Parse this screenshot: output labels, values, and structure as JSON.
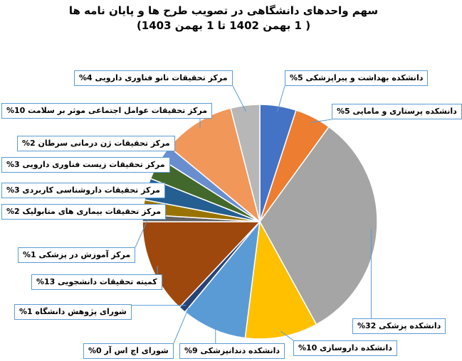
{
  "title": {
    "line1": "سهم واحدهای دانشگاهی در تصویب طرح ها و پایان نامه ها",
    "line2": "( 1 بهمن 1402 تا 1 بهمن  1403)"
  },
  "chart_data": {
    "type": "pie",
    "unit": "%",
    "slices": [
      {
        "name": "دانشکده بهداشت و پیراپزشکی",
        "value": 5,
        "label": "دانشکده بهداشت و پیراپزشکی 5%",
        "color": "#4472c4"
      },
      {
        "name": "دانشکده پرستاری و مامایی",
        "value": 5,
        "label": "دانشکده پرستاری و مامایی 5%",
        "color": "#ed7d31"
      },
      {
        "name": "دانشکده پزشکی",
        "value": 32,
        "label": "دانشکده پزشکی 32%",
        "color": "#a5a5a5"
      },
      {
        "name": "دانشکده داروسازی",
        "value": 10,
        "label": "دانشکده داروسازی 10%",
        "color": "#ffc000"
      },
      {
        "name": "دانشکده دندانپزشکی",
        "value": 9,
        "label": "دانشکده دندانپزشکی 9%",
        "color": "#5b9bd5"
      },
      {
        "name": "شورای اچ اس آر",
        "value": 0,
        "label": "شورای اچ اس آر 0%",
        "color": "#70ad47"
      },
      {
        "name": "شورای پژوهش دانشگاه",
        "value": 1,
        "label": "شورای پژوهش دانشگاه 1%",
        "color": "#264478"
      },
      {
        "name": "کمیته تحقیقات دانشجویی",
        "value": 13,
        "label": "کمیته تحقیقات دانشجویی 13%",
        "color": "#9e480e"
      },
      {
        "name": "مرکز آموزش در پزشکی",
        "value": 1,
        "label": "مرکز آموزش در پزشکی 1%",
        "color": "#636363"
      },
      {
        "name": "مرکز تحقیقات بیماری های متابولیک",
        "value": 2,
        "label": "مرکز تحقیقات بیماری  های متابولیک 2%",
        "color": "#997300"
      },
      {
        "name": "مرکز تحقیقات داروشناسی کاربردی",
        "value": 3,
        "label": "مرکز تحقیقات داروشناسی کاربردی 3%",
        "color": "#255e91"
      },
      {
        "name": "مرکز تحقیقات زیست فناوری دارویی",
        "value": 3,
        "label": "مرکز تحقیقات زیست فناوری دارویی 3%",
        "color": "#43682b"
      },
      {
        "name": "مرکز تحقیقات ژن درمانی سرطان",
        "value": 2,
        "label": "مرکز تحقیقات ژن درمانی سرطان 2%",
        "color": "#698ed0"
      },
      {
        "name": "مرکز تحقیقات عوامل اجتماعی موثر بر سلامت",
        "value": 10,
        "label": "مرکز تحقیقات عوامل اجتماعی موثر بر سلامت 10%",
        "color": "#f1975a"
      },
      {
        "name": "مرکز تحقیقات نانو فناوری دارویی",
        "value": 4,
        "label": "مرکز تحقیقات نانو فناوری دارویی 4%",
        "color": "#b7b7b7"
      }
    ]
  }
}
